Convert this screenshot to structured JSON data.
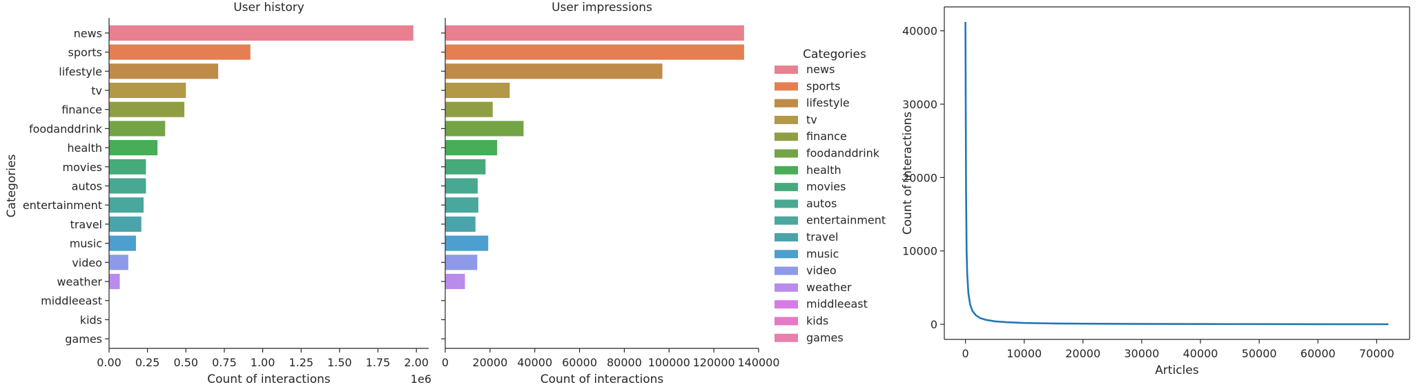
{
  "chart_data": [
    {
      "type": "bar",
      "orientation": "horizontal",
      "title": "User history",
      "xlabel": "Count of interactions",
      "ylabel": "Categories",
      "offset_text": "1e6",
      "categories": [
        "news",
        "sports",
        "lifestyle",
        "tv",
        "finance",
        "foodanddrink",
        "health",
        "movies",
        "autos",
        "entertainment",
        "travel",
        "music",
        "video",
        "weather",
        "middleeast",
        "kids",
        "games"
      ],
      "values": [
        1980000,
        920000,
        710000,
        500000,
        490000,
        365000,
        315000,
        240000,
        240000,
        225000,
        210000,
        175000,
        125000,
        70000,
        0,
        0,
        0
      ],
      "xlim": [
        0,
        2080000
      ],
      "xticks": [
        0,
        250000,
        500000,
        750000,
        1000000,
        1250000,
        1500000,
        1750000,
        2000000
      ],
      "xtick_labels": [
        "0.00",
        "0.25",
        "0.50",
        "0.75",
        "1.00",
        "1.25",
        "1.50",
        "1.75",
        "2.00"
      ],
      "grid": false
    },
    {
      "type": "bar",
      "orientation": "horizontal",
      "title": "User impressions",
      "xlabel": "Count of interactions",
      "ylabel": "",
      "categories": [
        "news",
        "sports",
        "lifestyle",
        "tv",
        "finance",
        "foodanddrink",
        "health",
        "movies",
        "autos",
        "entertainment",
        "travel",
        "music",
        "video",
        "weather",
        "middleeast",
        "kids",
        "games"
      ],
      "values": [
        133500,
        133500,
        97000,
        28800,
        21200,
        35000,
        23200,
        18000,
        14500,
        14800,
        13500,
        19200,
        14300,
        8800,
        0,
        0,
        0
      ],
      "xlim": [
        0,
        140000
      ],
      "xticks": [
        0,
        20000,
        40000,
        60000,
        80000,
        100000,
        120000,
        140000
      ],
      "xtick_labels": [
        "0",
        "20000",
        "40000",
        "60000",
        "80000",
        "100000",
        "120000",
        "140000"
      ],
      "grid": false
    },
    {
      "type": "line",
      "title": "",
      "xlabel": "Articles",
      "ylabel": "Count of interactions",
      "x": [
        0,
        50,
        100,
        200,
        300,
        500,
        800,
        1200,
        1800,
        2500,
        3500,
        5000,
        7000,
        10000,
        15000,
        20000,
        30000,
        40000,
        50000,
        60000,
        72000
      ],
      "y": [
        41200,
        28000,
        18000,
        10000,
        6800,
        4200,
        2700,
        1800,
        1200,
        850,
        600,
        400,
        280,
        180,
        110,
        80,
        50,
        35,
        25,
        18,
        10
      ],
      "xlim": [
        -3600,
        75600
      ],
      "ylim": [
        -2060,
        43260
      ],
      "xticks": [
        0,
        10000,
        20000,
        30000,
        40000,
        50000,
        60000,
        70000
      ],
      "yticks": [
        0,
        10000,
        20000,
        30000,
        40000
      ],
      "color": "#1f77b4",
      "grid": false
    }
  ],
  "legend": {
    "title": "Categories",
    "placement": "right",
    "items": [
      "news",
      "sports",
      "lifestyle",
      "tv",
      "finance",
      "foodanddrink",
      "health",
      "movies",
      "autos",
      "entertainment",
      "travel",
      "music",
      "video",
      "weather",
      "middleeast",
      "kids",
      "games"
    ]
  },
  "palette": [
    "#e8808f",
    "#e57f51",
    "#bf8b49",
    "#b29847",
    "#8f9e43",
    "#73a445",
    "#47ad56",
    "#47aa7b",
    "#48a892",
    "#4aa79e",
    "#4ba4aa",
    "#4c9fce",
    "#8e9ae8",
    "#b98cec",
    "#d67be6",
    "#e57ac7",
    "#e87fae"
  ]
}
